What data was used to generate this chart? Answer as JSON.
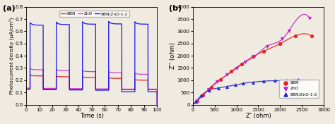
{
  "panel_a": {
    "title": "(a)",
    "xlabel": "Time (s)",
    "ylabel": "Photocurrent density (μA/cm²)",
    "xlim": [
      0,
      100
    ],
    "ylim": [
      0.0,
      0.8
    ],
    "yticks": [
      0.0,
      0.1,
      0.2,
      0.3,
      0.4,
      0.5,
      0.6,
      0.7,
      0.8
    ],
    "xticks": [
      0,
      10,
      20,
      30,
      40,
      50,
      60,
      70,
      80,
      90,
      100
    ],
    "bbn_color": "#e8211e",
    "zno_color": "#d040d0",
    "bbnzno_color": "#1515ee",
    "legend_labels": [
      "BBN",
      "ZnO",
      "BBN/ZnO-1-2"
    ],
    "on_periods": [
      [
        3,
        13
      ],
      [
        23,
        33
      ],
      [
        43,
        53
      ],
      [
        63,
        73
      ],
      [
        83,
        93
      ]
    ],
    "bbn_on_vals": [
      0.235,
      0.228,
      0.222,
      0.215,
      0.2
    ],
    "bbn_off_vals": [
      0.13,
      0.128,
      0.126,
      0.124,
      0.122
    ],
    "zno_on_vals": [
      0.285,
      0.278,
      0.27,
      0.26,
      0.248
    ],
    "zno_off_vals": [
      0.135,
      0.133,
      0.131,
      0.129,
      0.127
    ],
    "bbnzno_on_vals": [
      0.65,
      0.655,
      0.658,
      0.66,
      0.658
    ],
    "bbnzno_off_vals": [
      0.125,
      0.122,
      0.12,
      0.118,
      0.105
    ],
    "bbn_spike": 0.005,
    "zno_spike": 0.01,
    "bbnzno_spike": 0.02,
    "decay_tau": 1.5
  },
  "panel_b": {
    "title": "(b)",
    "xlabel": "Z' (ohm)",
    "ylabel": "Z'' (ohm)",
    "xlim": [
      0,
      3000
    ],
    "ylim": [
      0,
      4000
    ],
    "xticks": [
      0,
      500,
      1000,
      1500,
      2000,
      2500,
      3000
    ],
    "yticks": [
      0,
      500,
      1000,
      1500,
      2000,
      2500,
      3000,
      3500,
      4000
    ],
    "bbn_color": "#e8211e",
    "zno_color": "#c020cc",
    "bbnzno_color": "#2828cc",
    "bbn_x": [
      100,
      230,
      420,
      640,
      880,
      1120,
      1380,
      1620,
      2000,
      2350,
      2720
    ],
    "bbn_y": [
      150,
      390,
      720,
      1020,
      1360,
      1670,
      1960,
      2180,
      2490,
      2820,
      2820
    ],
    "zno_x": [
      80,
      200,
      360,
      560,
      780,
      1000,
      1200,
      1420,
      1700,
      2050,
      2200,
      2680
    ],
    "zno_y": [
      120,
      330,
      620,
      950,
      1210,
      1480,
      1740,
      1980,
      2390,
      2680,
      3020,
      3530
    ],
    "bbnzno_x": [
      70,
      200,
      380,
      580,
      780,
      980,
      1160,
      1380,
      1620,
      1880,
      2150,
      2420
    ],
    "bbnzno_y": [
      130,
      380,
      590,
      680,
      740,
      810,
      870,
      920,
      960,
      980,
      1000,
      1010
    ],
    "legend_labels": [
      "BBN",
      "ZnO",
      "BBN/ZnO-1-2"
    ]
  }
}
